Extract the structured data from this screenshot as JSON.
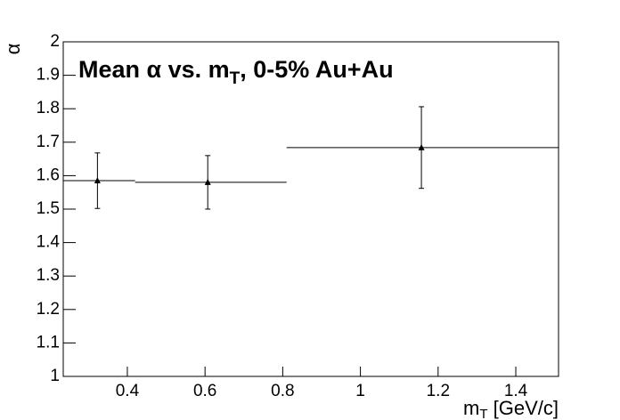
{
  "chart_data": {
    "type": "errorbar",
    "title_parts": [
      "Mean  α vs. m",
      "T",
      ", 0-5% Au+Au"
    ],
    "x_label_parts": [
      "m",
      "T",
      " [GeV/c]"
    ],
    "y_label": "α",
    "xlim": [
      0.235,
      1.51
    ],
    "ylim": [
      1,
      2
    ],
    "xticks": [
      0.4,
      0.6,
      0.8,
      1,
      1.2,
      1.4
    ],
    "yticks": [
      1,
      1.1,
      1.2,
      1.3,
      1.4,
      1.5,
      1.6,
      1.7,
      1.8,
      1.9,
      2
    ],
    "color": "#000000",
    "x": [
      0.323,
      0.607,
      1.157
    ],
    "xlow": [
      0.235,
      0.42,
      0.81
    ],
    "xhigh": [
      0.42,
      0.81,
      1.51
    ],
    "values": [
      1.585,
      1.58,
      1.684
    ],
    "yerr": [
      0.083,
      0.08,
      0.122
    ]
  }
}
